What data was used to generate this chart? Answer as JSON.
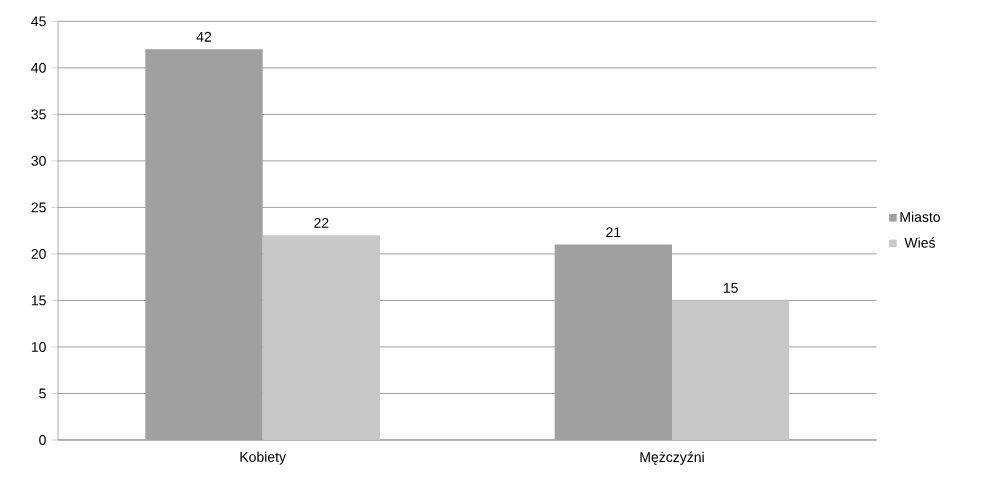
{
  "chart_data": {
    "type": "bar",
    "categories": [
      "Kobiety",
      "Mężczyźni"
    ],
    "series": [
      {
        "name": "Miasto",
        "color": "#a0a0a0",
        "values": [
          42,
          21
        ]
      },
      {
        "name": "Wieś",
        "color": "#c8c8c8",
        "values": [
          22,
          15
        ]
      }
    ],
    "ylim": [
      0,
      45
    ],
    "yticks": [
      0,
      5,
      10,
      15,
      20,
      25,
      30,
      35,
      40,
      45
    ],
    "grid": "y",
    "legend": "right",
    "data_labels": true
  }
}
